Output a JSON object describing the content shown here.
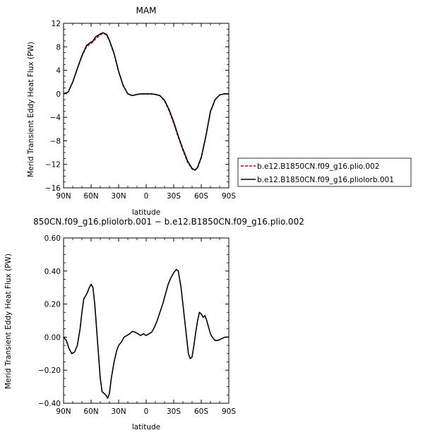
{
  "chart_data": [
    {
      "type": "line",
      "title": "MAM",
      "xlabel": "latitude",
      "ylabel": "Merid Transient Eddy Heat Flux (PW)",
      "x_tick_labels": [
        "90N",
        "60N",
        "30N",
        "0",
        "30S",
        "60S",
        "90S"
      ],
      "xlim": [
        90,
        -90
      ],
      "y_tick_labels": [
        "12",
        "8",
        "4",
        "0",
        "−4",
        "−8",
        "−12",
        "−16"
      ],
      "ylim": [
        -16,
        12
      ],
      "grid": false,
      "legend_placement": "outside-right",
      "series": [
        {
          "name": "b.e12.B1850CN.f09_g16.plio.002",
          "color": "#cc0000",
          "dashed": true,
          "points": [
            [
              90,
              0
            ],
            [
              85,
              0.3
            ],
            [
              80,
              2
            ],
            [
              75,
              4.3
            ],
            [
              70,
              6.4
            ],
            [
              65,
              8.0
            ],
            [
              62,
              8.4
            ],
            [
              58,
              8.8
            ],
            [
              55,
              9.4
            ],
            [
              50,
              10.0
            ],
            [
              47,
              10.3
            ],
            [
              43,
              10.0
            ],
            [
              40,
              9.0
            ],
            [
              35,
              6.8
            ],
            [
              30,
              3.8
            ],
            [
              25,
              1.4
            ],
            [
              20,
              0
            ],
            [
              15,
              -0.3
            ],
            [
              10,
              -0.1
            ],
            [
              5,
              0
            ],
            [
              0,
              0
            ],
            [
              -5,
              0
            ],
            [
              -10,
              -0.1
            ],
            [
              -15,
              -0.3
            ],
            [
              -20,
              -1.2
            ],
            [
              -25,
              -2.9
            ],
            [
              -30,
              -5.0
            ],
            [
              -35,
              -7.4
            ],
            [
              -40,
              -9.6
            ],
            [
              -45,
              -11.6
            ],
            [
              -50,
              -12.8
            ],
            [
              -53,
              -13.0
            ],
            [
              -56,
              -12.6
            ],
            [
              -60,
              -10.9
            ],
            [
              -65,
              -7.3
            ],
            [
              -70,
              -3.1
            ],
            [
              -75,
              -1.0
            ],
            [
              -80,
              -0.2
            ],
            [
              -85,
              0
            ],
            [
              -90,
              0
            ]
          ]
        },
        {
          "name": "b.e12.B1850CN.f09_g16.pliolorb.001",
          "color": "#000000",
          "dashed": false,
          "points": [
            [
              90,
              0
            ],
            [
              85,
              0.3
            ],
            [
              80,
              2
            ],
            [
              75,
              4.3
            ],
            [
              70,
              6.5
            ],
            [
              65,
              8.2
            ],
            [
              62,
              8.6
            ],
            [
              58,
              9.0
            ],
            [
              55,
              9.7
            ],
            [
              50,
              10.2
            ],
            [
              47,
              10.4
            ],
            [
              43,
              10.1
            ],
            [
              40,
              9.1
            ],
            [
              35,
              6.9
            ],
            [
              30,
              3.8
            ],
            [
              25,
              1.4
            ],
            [
              20,
              0
            ],
            [
              15,
              -0.3
            ],
            [
              10,
              -0.1
            ],
            [
              5,
              0
            ],
            [
              0,
              0
            ],
            [
              -5,
              0
            ],
            [
              -10,
              -0.1
            ],
            [
              -15,
              -0.3
            ],
            [
              -20,
              -1.1
            ],
            [
              -25,
              -2.7
            ],
            [
              -30,
              -4.8
            ],
            [
              -35,
              -7.2
            ],
            [
              -40,
              -9.4
            ],
            [
              -45,
              -11.4
            ],
            [
              -50,
              -12.7
            ],
            [
              -53,
              -13.0
            ],
            [
              -56,
              -12.5
            ],
            [
              -60,
              -10.8
            ],
            [
              -65,
              -7.2
            ],
            [
              -70,
              -3.0
            ],
            [
              -75,
              -1.0
            ],
            [
              -80,
              -0.2
            ],
            [
              -85,
              0
            ],
            [
              -90,
              0
            ]
          ]
        }
      ]
    },
    {
      "type": "line",
      "title": "850CN.f09_g16.pliolorb.001 − b.e12.B1850CN.f09_g16.plio.002",
      "xlabel": "latitude",
      "ylabel": "Merid Transient Eddy Heat Flux (PW)",
      "x_tick_labels": [
        "90N",
        "60N",
        "30N",
        "0",
        "30S",
        "60S",
        "90S"
      ],
      "xlim": [
        90,
        -90
      ],
      "y_tick_labels": [
        "0.60",
        "0.40",
        "0.20",
        "0.00",
        "−0.20",
        "−0.40"
      ],
      "ylim": [
        -0.4,
        0.6
      ],
      "grid": false,
      "series": [
        {
          "color": "#000000",
          "dashed": false,
          "points": [
            [
              90,
              0
            ],
            [
              87,
              -0.02
            ],
            [
              84,
              -0.07
            ],
            [
              81,
              -0.1
            ],
            [
              78,
              -0.09
            ],
            [
              75,
              -0.05
            ],
            [
              72,
              0.05
            ],
            [
              70,
              0.15
            ],
            [
              68,
              0.23
            ],
            [
              66,
              0.25
            ],
            [
              64,
              0.27
            ],
            [
              62,
              0.3
            ],
            [
              60,
              0.32
            ],
            [
              58,
              0.3
            ],
            [
              56,
              0.2
            ],
            [
              54,
              0.05
            ],
            [
              52,
              -0.1
            ],
            [
              50,
              -0.25
            ],
            [
              48,
              -0.33
            ],
            [
              46,
              -0.34
            ],
            [
              44,
              -0.35
            ],
            [
              42,
              -0.37
            ],
            [
              40,
              -0.34
            ],
            [
              38,
              -0.25
            ],
            [
              35,
              -0.15
            ],
            [
              32,
              -0.08
            ],
            [
              30,
              -0.05
            ],
            [
              27,
              -0.03
            ],
            [
              24,
              0
            ],
            [
              21,
              0.01
            ],
            [
              18,
              0.02
            ],
            [
              15,
              0.035
            ],
            [
              12,
              0.03
            ],
            [
              9,
              0.02
            ],
            [
              6,
              0.01
            ],
            [
              3,
              0.02
            ],
            [
              0,
              0.01
            ],
            [
              -3,
              0.02
            ],
            [
              -6,
              0.03
            ],
            [
              -9,
              0.06
            ],
            [
              -12,
              0.1
            ],
            [
              -15,
              0.15
            ],
            [
              -18,
              0.2
            ],
            [
              -21,
              0.26
            ],
            [
              -24,
              0.32
            ],
            [
              -27,
              0.36
            ],
            [
              -30,
              0.39
            ],
            [
              -33,
              0.41
            ],
            [
              -35,
              0.4
            ],
            [
              -38,
              0.3
            ],
            [
              -41,
              0.15
            ],
            [
              -44,
              0.0
            ],
            [
              -46,
              -0.1
            ],
            [
              -48,
              -0.13
            ],
            [
              -50,
              -0.12
            ],
            [
              -52,
              -0.05
            ],
            [
              -54,
              0.03
            ],
            [
              -56,
              0.1
            ],
            [
              -58,
              0.15
            ],
            [
              -60,
              0.14
            ],
            [
              -62,
              0.12
            ],
            [
              -64,
              0.13
            ],
            [
              -66,
              0.1
            ],
            [
              -68,
              0.06
            ],
            [
              -70,
              0.02
            ],
            [
              -72,
              0.0
            ],
            [
              -75,
              -0.02
            ],
            [
              -78,
              -0.02
            ],
            [
              -82,
              -0.01
            ],
            [
              -86,
              0.0
            ],
            [
              -90,
              0.0
            ]
          ]
        }
      ]
    }
  ]
}
